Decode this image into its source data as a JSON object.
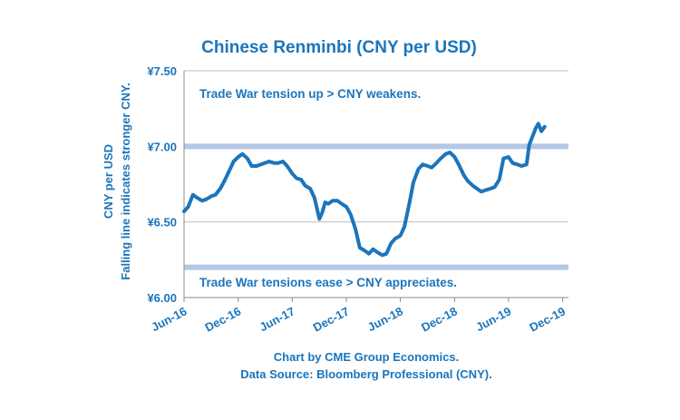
{
  "colors": {
    "accent": "#1b75bc",
    "line": "#1b75bc",
    "reference_band": "#b4c7e7",
    "grid": "#bfbfbf"
  },
  "chart_data": {
    "type": "line",
    "title": "Chinese Renminbi (CNY per USD)",
    "ylabel_line1": "CNY per  USD",
    "ylabel_line2": "Falling line indicates stronger CNY.",
    "ylim": [
      6.0,
      7.5
    ],
    "y_ticks": [
      6.0,
      6.5,
      7.0,
      7.5
    ],
    "y_tick_labels": [
      "¥6.00",
      "¥6.50",
      "¥7.00",
      "¥7.50"
    ],
    "x_ticks": [
      "2016-06",
      "2016-12",
      "2017-06",
      "2017-12",
      "2018-06",
      "2018-12",
      "2019-06",
      "2019-12"
    ],
    "x_tick_labels": [
      "Jun-16",
      "Dec-16",
      "Jun-17",
      "Dec-17",
      "Jun-18",
      "Dec-18",
      "Jun-19",
      "Dec-19"
    ],
    "grid": "horizontal",
    "reference_lines": [
      {
        "y": 7.0,
        "label": "Trade War tension up > CNY weakens."
      },
      {
        "y": 6.2,
        "label": "Trade War tensions ease > CNY appreciates."
      }
    ],
    "series": [
      {
        "x": [
          "2016-06-01",
          "2016-06-15",
          "2016-07-01",
          "2016-07-15",
          "2016-08-01",
          "2016-08-15",
          "2016-09-01",
          "2016-09-15",
          "2016-10-01",
          "2016-10-15",
          "2016-11-01",
          "2016-11-15",
          "2016-12-01",
          "2016-12-15",
          "2017-01-01",
          "2017-01-15",
          "2017-02-01",
          "2017-02-15",
          "2017-03-01",
          "2017-03-15",
          "2017-04-01",
          "2017-04-15",
          "2017-05-01",
          "2017-05-15",
          "2017-06-01",
          "2017-06-15",
          "2017-07-01",
          "2017-07-15",
          "2017-08-01",
          "2017-08-15",
          "2017-09-01",
          "2017-09-10",
          "2017-09-20",
          "2017-10-01",
          "2017-10-15",
          "2017-11-01",
          "2017-11-15",
          "2017-12-01",
          "2017-12-15",
          "2018-01-01",
          "2018-01-15",
          "2018-02-01",
          "2018-02-15",
          "2018-03-01",
          "2018-03-15",
          "2018-04-01",
          "2018-04-15",
          "2018-05-01",
          "2018-05-15",
          "2018-06-01",
          "2018-06-15",
          "2018-07-01",
          "2018-07-15",
          "2018-08-01",
          "2018-08-15",
          "2018-09-01",
          "2018-09-15",
          "2018-10-01",
          "2018-10-15",
          "2018-11-01",
          "2018-11-15",
          "2018-12-01",
          "2018-12-15",
          "2019-01-01",
          "2019-01-15",
          "2019-02-01",
          "2019-02-15",
          "2019-03-01",
          "2019-03-15",
          "2019-04-01",
          "2019-04-15",
          "2019-05-01",
          "2019-05-15",
          "2019-06-01",
          "2019-06-15",
          "2019-07-01",
          "2019-07-15",
          "2019-08-01",
          "2019-08-10",
          "2019-08-20",
          "2019-09-01",
          "2019-09-10",
          "2019-09-20",
          "2019-10-01"
        ],
        "values": [
          6.57,
          6.6,
          6.68,
          6.66,
          6.64,
          6.65,
          6.67,
          6.68,
          6.72,
          6.77,
          6.84,
          6.9,
          6.93,
          6.95,
          6.92,
          6.87,
          6.87,
          6.88,
          6.89,
          6.9,
          6.89,
          6.89,
          6.9,
          6.87,
          6.82,
          6.79,
          6.78,
          6.74,
          6.72,
          6.66,
          6.52,
          6.56,
          6.63,
          6.62,
          6.64,
          6.64,
          6.62,
          6.6,
          6.55,
          6.45,
          6.33,
          6.31,
          6.29,
          6.32,
          6.3,
          6.28,
          6.29,
          6.36,
          6.39,
          6.41,
          6.47,
          6.62,
          6.76,
          6.85,
          6.88,
          6.87,
          6.86,
          6.89,
          6.92,
          6.95,
          6.96,
          6.93,
          6.88,
          6.81,
          6.77,
          6.74,
          6.72,
          6.7,
          6.71,
          6.72,
          6.73,
          6.78,
          6.92,
          6.93,
          6.89,
          6.88,
          6.87,
          6.88,
          7.01,
          7.06,
          7.12,
          7.15,
          7.1,
          7.13
        ]
      }
    ],
    "footer_line1": "Chart by CME Group Economics.",
    "footer_line2": "Data Source:  Bloomberg Professional (CNY)."
  }
}
